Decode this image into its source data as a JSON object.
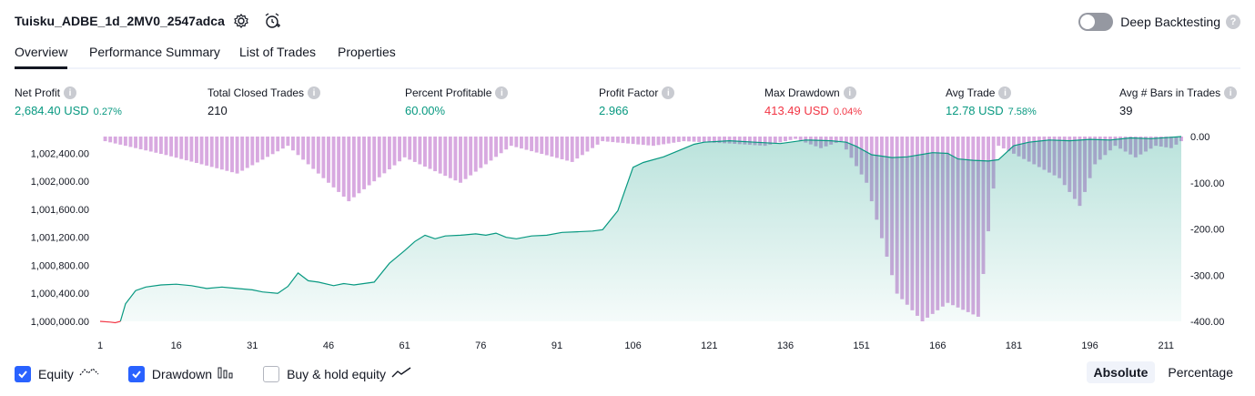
{
  "header": {
    "title": "Tuisku_ADBE_1d_2MV0_2547adca",
    "settings_icon": "gear-icon",
    "alert_icon": "alarm-clock-plus-icon",
    "deep_backtesting_label": "Deep Backtesting",
    "deep_backtesting_enabled": false
  },
  "tabs": [
    {
      "label": "Overview",
      "active": true
    },
    {
      "label": "Performance Summary",
      "active": false
    },
    {
      "label": "List of Trades",
      "active": false
    },
    {
      "label": "Properties",
      "active": false
    }
  ],
  "metrics": {
    "net_profit": {
      "label": "Net Profit",
      "value": "2,684.40 USD",
      "sub": "0.27%"
    },
    "total_closed_trades": {
      "label": "Total Closed Trades",
      "value": "210"
    },
    "percent_profitable": {
      "label": "Percent Profitable",
      "value": "60.00%"
    },
    "profit_factor": {
      "label": "Profit Factor",
      "value": "2.966"
    },
    "max_drawdown": {
      "label": "Max Drawdown",
      "value": "413.49 USD",
      "sub": "0.04%"
    },
    "avg_trade": {
      "label": "Avg Trade",
      "value": "12.78 USD",
      "sub": "7.58%"
    },
    "avg_bars": {
      "label": "Avg # Bars in Trades",
      "value": "39"
    }
  },
  "chart_data": {
    "type": "area",
    "x_ticks": [
      "1",
      "16",
      "31",
      "46",
      "61",
      "76",
      "91",
      "106",
      "121",
      "136",
      "151",
      "166",
      "181",
      "196",
      "211"
    ],
    "x_range": [
      1,
      214
    ],
    "left_axis": {
      "label": "Equity",
      "ticks": [
        "1,000,000.00",
        "1,000,400.00",
        "1,000,800.00",
        "1,001,200.00",
        "1,001,600.00",
        "1,002,000.00",
        "1,002,400.00"
      ],
      "range": [
        1000000,
        1002640
      ]
    },
    "right_axis": {
      "label": "Drawdown",
      "ticks": [
        "0.00",
        "-100.00",
        "-200.00",
        "-300.00",
        "-400.00"
      ],
      "range": [
        -400,
        0
      ]
    },
    "equity_series": {
      "name": "Equity",
      "color": "#089981",
      "points": [
        [
          1,
          1000000
        ],
        [
          3,
          999990
        ],
        [
          4,
          999980
        ],
        [
          5,
          1000000
        ],
        [
          6,
          1000250
        ],
        [
          8,
          1000440
        ],
        [
          10,
          1000490
        ],
        [
          13,
          1000520
        ],
        [
          16,
          1000530
        ],
        [
          19,
          1000510
        ],
        [
          22,
          1000470
        ],
        [
          25,
          1000490
        ],
        [
          28,
          1000470
        ],
        [
          31,
          1000450
        ],
        [
          33,
          1000420
        ],
        [
          36,
          1000400
        ],
        [
          38,
          1000500
        ],
        [
          40,
          1000690
        ],
        [
          42,
          1000580
        ],
        [
          44,
          1000560
        ],
        [
          47,
          1000510
        ],
        [
          49,
          1000540
        ],
        [
          51,
          1000520
        ],
        [
          55,
          1000560
        ],
        [
          58,
          1000830
        ],
        [
          61,
          1001010
        ],
        [
          63,
          1001140
        ],
        [
          65,
          1001230
        ],
        [
          67,
          1001180
        ],
        [
          69,
          1001220
        ],
        [
          72,
          1001230
        ],
        [
          75,
          1001250
        ],
        [
          77,
          1001230
        ],
        [
          79,
          1001260
        ],
        [
          81,
          1001200
        ],
        [
          83,
          1001180
        ],
        [
          86,
          1001220
        ],
        [
          89,
          1001230
        ],
        [
          92,
          1001270
        ],
        [
          95,
          1001280
        ],
        [
          98,
          1001290
        ],
        [
          100,
          1001310
        ],
        [
          103,
          1001580
        ],
        [
          106,
          1002200
        ],
        [
          108,
          1002270
        ],
        [
          112,
          1002350
        ],
        [
          115,
          1002440
        ],
        [
          118,
          1002530
        ],
        [
          120,
          1002560
        ],
        [
          125,
          1002580
        ],
        [
          130,
          1002560
        ],
        [
          135,
          1002540
        ],
        [
          140,
          1002590
        ],
        [
          145,
          1002580
        ],
        [
          148,
          1002560
        ],
        [
          150,
          1002500
        ],
        [
          153,
          1002380
        ],
        [
          155,
          1002360
        ],
        [
          157,
          1002340
        ],
        [
          160,
          1002350
        ],
        [
          165,
          1002410
        ],
        [
          168,
          1002400
        ],
        [
          170,
          1002320
        ],
        [
          173,
          1002300
        ],
        [
          176,
          1002290
        ],
        [
          178,
          1002310
        ],
        [
          181,
          1002510
        ],
        [
          184,
          1002560
        ],
        [
          188,
          1002590
        ],
        [
          192,
          1002580
        ],
        [
          196,
          1002600
        ],
        [
          200,
          1002590
        ],
        [
          204,
          1002620
        ],
        [
          208,
          1002610
        ],
        [
          212,
          1002630
        ],
        [
          214,
          1002640
        ]
      ]
    },
    "drawdown_series": {
      "name": "Drawdown",
      "color": "#ce93d8",
      "points": [
        [
          2,
          -10
        ],
        [
          14,
          -40
        ],
        [
          28,
          -80
        ],
        [
          38,
          -20
        ],
        [
          50,
          -140
        ],
        [
          61,
          -45
        ],
        [
          72,
          -100
        ],
        [
          82,
          -20
        ],
        [
          94,
          -55
        ],
        [
          100,
          -10
        ],
        [
          110,
          -20
        ],
        [
          116,
          -10
        ],
        [
          125,
          -15
        ],
        [
          132,
          -20
        ],
        [
          138,
          -5
        ],
        [
          143,
          -25
        ],
        [
          147,
          -10
        ],
        [
          152,
          -100
        ],
        [
          158,
          -340
        ],
        [
          163,
          -400
        ],
        [
          168,
          -360
        ],
        [
          174,
          -390
        ],
        [
          178,
          -20
        ],
        [
          185,
          -60
        ],
        [
          190,
          -90
        ],
        [
          194,
          -150
        ],
        [
          197,
          -60
        ],
        [
          201,
          -20
        ],
        [
          205,
          -45
        ],
        [
          209,
          -20
        ],
        [
          212,
          -25
        ],
        [
          214,
          -10
        ]
      ]
    },
    "legend": [
      {
        "label": "Equity",
        "checked": true,
        "icon": "equity-line-icon"
      },
      {
        "label": "Drawdown",
        "checked": true,
        "icon": "drawdown-bars-icon"
      },
      {
        "label": "Buy & hold equity",
        "checked": false,
        "icon": "buy-hold-line-icon"
      }
    ]
  },
  "view_switcher": {
    "absolute": "Absolute",
    "percentage": "Percentage",
    "selected": "Absolute"
  }
}
